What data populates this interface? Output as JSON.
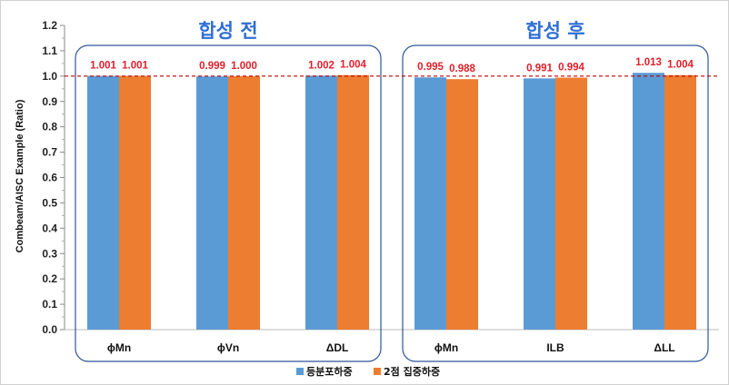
{
  "chart_data": {
    "type": "bar",
    "title": "",
    "ylabel": "Combeam/AISC Example  (Ratio)",
    "xlabel": "",
    "ylim": [
      0,
      1.2
    ],
    "yticks": [
      "0.0",
      "0.1",
      "0.2",
      "0.3",
      "0.4",
      "0.5",
      "0.6",
      "0.7",
      "0.8",
      "0.9",
      "1.0",
      "1.1",
      "1.2"
    ],
    "reference_line": 1.0,
    "grid": false,
    "legend_position": "bottom",
    "groups": [
      {
        "title": "합성 전",
        "categories": [
          "ϕMn",
          "ϕVn",
          "ΔDL"
        ]
      },
      {
        "title": "합성 후",
        "categories": [
          "ϕMn",
          "ILB",
          "ΔLL"
        ]
      }
    ],
    "categories": [
      "ϕMn",
      "ϕVn",
      "ΔDL",
      "ϕMn",
      "ILB",
      "ΔLL"
    ],
    "series": [
      {
        "name": "등분포하중",
        "color": "#5b9bd5",
        "values": [
          1.001,
          0.999,
          1.002,
          0.995,
          0.991,
          1.013
        ],
        "labels": [
          "1.001",
          "0.999",
          "1.002",
          "0.995",
          "0.991",
          "1.013"
        ]
      },
      {
        "name": "2점 집중하중",
        "color": "#ed7d31",
        "values": [
          1.001,
          1.0,
          1.004,
          0.988,
          0.994,
          1.004
        ],
        "labels": [
          "1.001",
          "1.000",
          "1.004",
          "0.988",
          "0.994",
          "1.004"
        ]
      }
    ]
  }
}
